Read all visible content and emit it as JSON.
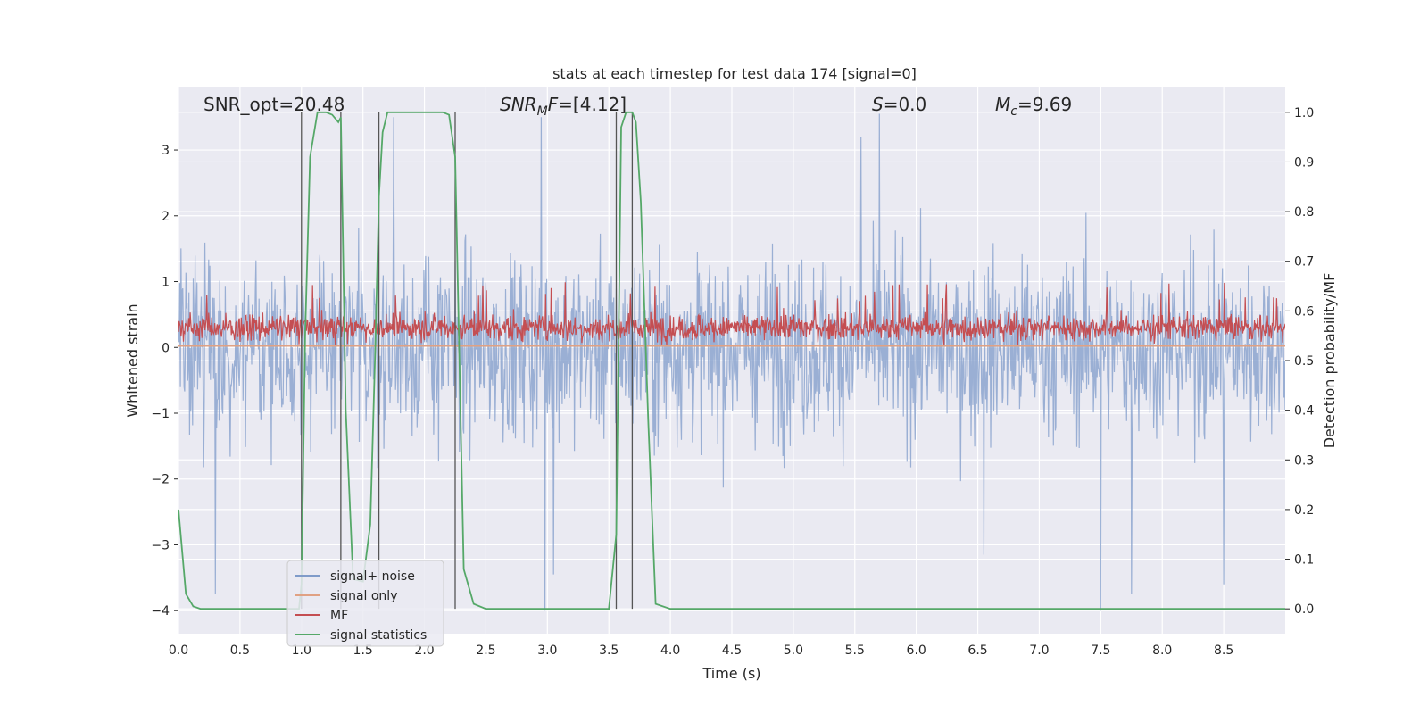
{
  "chart_data": {
    "type": "line",
    "title": "stats at each timestep for test data 174 [signal=0]",
    "xlabel": "Time (s)",
    "ylabel": "Whitened strain",
    "y2label": "Detection probability/MF",
    "xlim": [
      0.0,
      9.0
    ],
    "ylim": [
      -4.35,
      3.95
    ],
    "y2lim": [
      -0.05,
      1.05
    ],
    "xticks": [
      "0.0",
      "0.5",
      "1.0",
      "1.5",
      "2.0",
      "2.5",
      "3.0",
      "3.5",
      "4.0",
      "4.5",
      "5.0",
      "5.5",
      "6.0",
      "6.5",
      "7.0",
      "7.5",
      "8.0",
      "8.5"
    ],
    "xtick_values": [
      0.0,
      0.5,
      1.0,
      1.5,
      2.0,
      2.5,
      3.0,
      3.5,
      4.0,
      4.5,
      5.0,
      5.5,
      6.0,
      6.5,
      7.0,
      7.5,
      8.0,
      8.5
    ],
    "yticks": [
      "−4",
      "−3",
      "−2",
      "−1",
      "0",
      "1",
      "2",
      "3"
    ],
    "ytick_values": [
      -4,
      -3,
      -2,
      -1,
      0,
      1,
      2,
      3
    ],
    "y2ticks": [
      "0.0",
      "0.1",
      "0.2",
      "0.3",
      "0.4",
      "0.5",
      "0.6",
      "0.7",
      "0.8",
      "0.9",
      "1.0"
    ],
    "y2tick_values": [
      0.0,
      0.1,
      0.2,
      0.3,
      0.4,
      0.5,
      0.6,
      0.7,
      0.8,
      0.9,
      1.0
    ],
    "annotations": {
      "snr_opt": "SNR_opt=20.48",
      "snr_mf_main": "SNR",
      "snr_mf_sub": "M",
      "snr_mf_tail": "F",
      "snr_mf_value": "=[4.12]",
      "s_sym": "S",
      "s_value": "=0.0",
      "mc_main": "M",
      "mc_sub": "c",
      "mc_value": "=9.69"
    },
    "vertical_lines_x": [
      1.0,
      1.32,
      1.63,
      2.25,
      3.56,
      3.69
    ],
    "legend": {
      "placement": "lower-left",
      "entries": [
        {
          "label": "signal+ noise",
          "color": "#7f9bc9"
        },
        {
          "label": "signal only",
          "color": "#e0a183"
        },
        {
          "label": "MF",
          "color": "#c44e52"
        },
        {
          "label": "signal statistics",
          "color": "#55a868"
        }
      ]
    },
    "series": [
      {
        "name": "signal+ noise",
        "color": "#7f9bc9",
        "description": "whitened strain noise, roughly +2.5 to -2.5 with spikes to about +3.6 and -4.0",
        "peak_spikes": [
          [
            0.3,
            -3.75
          ],
          [
            1.75,
            3.5
          ],
          [
            2.95,
            3.5
          ],
          [
            2.98,
            -4.0
          ],
          [
            3.05,
            -3.45
          ],
          [
            5.55,
            3.2
          ],
          [
            5.7,
            3.55
          ],
          [
            6.55,
            -3.15
          ],
          [
            7.5,
            -4.0
          ],
          [
            7.75,
            -3.75
          ],
          [
            8.5,
            -3.6
          ]
        ]
      },
      {
        "name": "signal only",
        "color": "#e0a183",
        "description": "flat near zero"
      },
      {
        "name": "MF",
        "color": "#c44e52",
        "description": "matched filter output, fluctuating between about 0 and 0.8, occasional peaks near 1.0"
      },
      {
        "name": "signal statistics",
        "color": "#55a868",
        "axis": "right",
        "x": [
          0.0,
          0.06,
          0.12,
          0.18,
          0.3,
          0.5,
          0.8,
          0.98,
          1.0,
          1.03,
          1.07,
          1.13,
          1.2,
          1.25,
          1.3,
          1.32,
          1.36,
          1.42,
          1.5,
          1.56,
          1.6,
          1.63,
          1.66,
          1.7,
          1.8,
          2.0,
          2.15,
          2.2,
          2.25,
          2.32,
          2.4,
          2.5,
          2.7,
          3.0,
          3.3,
          3.5,
          3.56,
          3.6,
          3.64,
          3.69,
          3.72,
          3.76,
          3.82,
          3.88,
          4.0,
          4.5,
          5.0,
          6.0,
          7.0,
          8.0,
          9.0
        ],
        "y": [
          0.2,
          0.03,
          0.005,
          0.0,
          0.0,
          0.0,
          0.0,
          0.0,
          0.05,
          0.55,
          0.91,
          1.0,
          1.0,
          0.995,
          0.98,
          0.99,
          0.4,
          0.06,
          0.055,
          0.17,
          0.52,
          0.83,
          0.96,
          1.0,
          1.0,
          1.0,
          1.0,
          0.995,
          0.91,
          0.08,
          0.01,
          0.0,
          0.0,
          0.0,
          0.0,
          0.0,
          0.15,
          0.97,
          1.0,
          1.0,
          0.98,
          0.82,
          0.38,
          0.01,
          0.0,
          0.0,
          0.0,
          0.0,
          0.0,
          0.0,
          0.0
        ]
      }
    ]
  }
}
